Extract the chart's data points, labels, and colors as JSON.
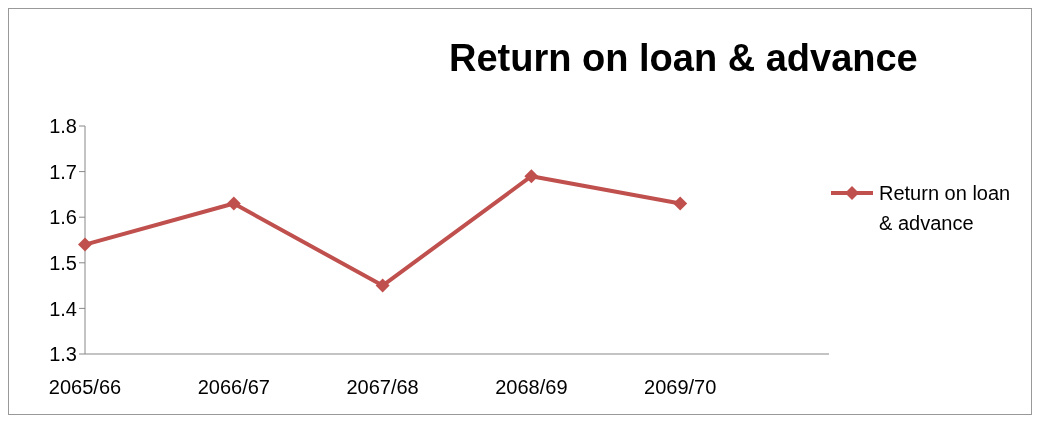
{
  "chart_data": {
    "type": "line",
    "title": "Return on loan & advance",
    "categories": [
      "2065/66",
      "2066/67",
      "2067/68",
      "2068/69",
      "2069/70",
      null
    ],
    "series": [
      {
        "name": "Return on loan & advance",
        "color": "#c0504d",
        "values": [
          1.54,
          1.63,
          1.45,
          1.69,
          1.63,
          null
        ]
      }
    ],
    "ylim": [
      1.3,
      1.8
    ],
    "yticks": [
      1.3,
      1.4,
      1.5,
      1.6,
      1.7,
      1.8
    ],
    "grid": false,
    "legend": "right",
    "marker": "diamond",
    "line_style": "solid"
  }
}
